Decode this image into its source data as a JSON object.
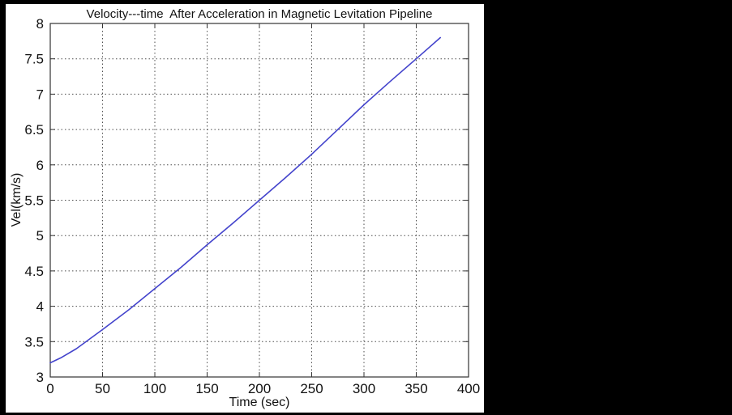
{
  "layout_colors": {
    "page_background": "#000000",
    "figure_background": "#ffffff",
    "axis_color": "#333333",
    "grid_color": "#4d4d4d",
    "text_color": "#111111"
  },
  "chart_data": {
    "type": "line",
    "title": "Velocity---time  After Acceleration in Magnetic Levitation Pipeline",
    "xlabel": "Time (sec)",
    "ylabel": "Vel(km/s)",
    "xlim": [
      0,
      400
    ],
    "ylim": [
      3,
      8
    ],
    "x_ticks": [
      0,
      50,
      100,
      150,
      200,
      250,
      300,
      350,
      400
    ],
    "y_ticks": [
      3,
      3.5,
      4,
      4.5,
      5,
      5.5,
      6,
      6.5,
      7,
      7.5,
      8
    ],
    "grid": true,
    "grid_style": "dotted",
    "legend": "none",
    "line_color": "#4444cc",
    "series": [
      {
        "name": "velocity",
        "x": [
          0,
          10,
          25,
          50,
          75,
          100,
          125,
          150,
          175,
          200,
          225,
          250,
          275,
          300,
          325,
          350,
          373
        ],
        "y": [
          3.2,
          3.27,
          3.4,
          3.67,
          3.95,
          4.25,
          4.55,
          4.87,
          5.18,
          5.5,
          5.82,
          6.15,
          6.5,
          6.85,
          7.18,
          7.5,
          7.8
        ]
      }
    ]
  }
}
